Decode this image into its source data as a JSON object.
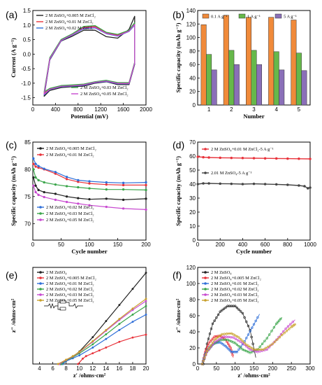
{
  "panels": {
    "a": {
      "label": "(a)"
    },
    "b": {
      "label": "(b)"
    },
    "c": {
      "label": "(c)"
    },
    "d": {
      "label": "(d)"
    },
    "e": {
      "label": "(e)"
    },
    "f": {
      "label": "(f)"
    }
  },
  "chart_data": [
    {
      "panel": "a",
      "type": "line",
      "xlabel": "Potential (mV)",
      "ylabel": "Current (A g⁻¹)",
      "xlim": [
        0,
        2000
      ],
      "ylim": [
        -1.75,
        1.5
      ],
      "xticks": [
        0,
        400,
        800,
        1200,
        1600,
        2000
      ],
      "yticks": [
        -1.5,
        -1.0,
        -0.5,
        0.0,
        0.5,
        1.0,
        1.5
      ],
      "legend_top": [
        "2 M ZnSO₄+0.005 M ZnCl₂",
        "2 M ZnSO₄+0.01 M ZnCl₂",
        "2 M ZnSO₄+0.02 M ZnCl₂"
      ],
      "legend_bottom": [
        "2 M ZnSO₄+0.03 M ZnCl₂",
        "2 M ZnSO₄+0.05 M ZnCl₂"
      ],
      "series": [
        {
          "name": "2 M ZnSO₄+0.005 M ZnCl₂",
          "color": "#222222",
          "x": [
            200,
            300,
            500,
            700,
            900,
            1100,
            1300,
            1500,
            1700,
            1800,
            1800,
            1700,
            1500,
            1300,
            1100,
            900,
            700,
            500,
            300,
            200
          ],
          "y": [
            -1.45,
            -0.2,
            0.45,
            0.62,
            0.82,
            0.82,
            0.6,
            0.55,
            0.85,
            1.3,
            -0.35,
            -1.05,
            -1.05,
            -0.95,
            -1.0,
            -1.1,
            -1.12,
            -1.15,
            -1.25,
            -1.45
          ]
        },
        {
          "name": "2 M ZnSO₄+0.01 M ZnCl₂",
          "color": "#e8323a",
          "x": [
            200,
            300,
            500,
            700,
            900,
            1100,
            1300,
            1500,
            1700,
            1800,
            1800,
            1700,
            1500,
            1300,
            1100,
            900,
            700,
            500,
            300,
            200
          ],
          "y": [
            -1.35,
            -0.15,
            0.48,
            0.68,
            0.92,
            0.95,
            0.72,
            0.65,
            0.8,
            1.05,
            -0.3,
            -1.0,
            -1.0,
            -0.92,
            -0.97,
            -1.05,
            -1.08,
            -1.1,
            -1.2,
            -1.35
          ]
        },
        {
          "name": "2 M ZnSO₄+0.02 M ZnCl₂",
          "color": "#2f6fd8",
          "x": [
            200,
            300,
            500,
            700,
            900,
            1100,
            1300,
            1500,
            1700,
            1800,
            1800,
            1700,
            1500,
            1300,
            1100,
            900,
            700,
            500,
            300,
            200
          ],
          "y": [
            -1.4,
            -0.18,
            0.46,
            0.66,
            0.88,
            0.9,
            0.7,
            0.62,
            0.78,
            1.0,
            -0.32,
            -1.02,
            -1.02,
            -0.94,
            -0.98,
            -1.07,
            -1.1,
            -1.12,
            -1.22,
            -1.4
          ]
        },
        {
          "name": "2 M ZnSO₄+0.03 M ZnCl₂",
          "color": "#3aa54a",
          "x": [
            200,
            300,
            500,
            700,
            900,
            1100,
            1300,
            1500,
            1700,
            1800,
            1800,
            1700,
            1500,
            1300,
            1100,
            900,
            700,
            500,
            300,
            200
          ],
          "y": [
            -1.3,
            -0.12,
            0.5,
            0.7,
            0.95,
            0.98,
            0.75,
            0.68,
            0.82,
            1.08,
            -0.28,
            -0.98,
            -0.98,
            -0.9,
            -0.95,
            -1.03,
            -1.06,
            -1.08,
            -1.18,
            -1.3
          ]
        },
        {
          "name": "2 M ZnSO₄+0.05 M ZnCl₂",
          "color": "#c84ad0",
          "x": [
            200,
            300,
            500,
            700,
            900,
            1100,
            1300,
            1500,
            1700,
            1800,
            1800,
            1700,
            1500,
            1300,
            1100,
            900,
            700,
            500,
            300,
            200
          ],
          "y": [
            -1.38,
            -0.16,
            0.47,
            0.67,
            0.9,
            0.92,
            0.71,
            0.63,
            0.79,
            1.02,
            -0.31,
            -1.01,
            -1.01,
            -0.93,
            -0.97,
            -1.06,
            -1.09,
            -1.11,
            -1.21,
            -1.38
          ]
        }
      ]
    },
    {
      "panel": "b",
      "type": "bar",
      "xlabel": "Number",
      "ylabel": "Specific capacity (mAh g⁻¹)",
      "ylim": [
        0,
        140
      ],
      "yticks": [
        0,
        20,
        40,
        60,
        80,
        100,
        120,
        140
      ],
      "categories": [
        "1",
        "2",
        "3",
        "4",
        "5"
      ],
      "series": [
        {
          "name": "0.1 A g⁻¹",
          "color": "#f08a3a",
          "values": [
            119,
            133,
            130,
            130,
            126
          ]
        },
        {
          "name": "1 A g⁻¹",
          "color": "#66b84a",
          "values": [
            75,
            81,
            81,
            79,
            77
          ]
        },
        {
          "name": "5 A g⁻¹",
          "color": "#8a6fb8",
          "values": [
            52,
            60,
            60,
            52,
            51
          ]
        }
      ]
    },
    {
      "panel": "c",
      "type": "line",
      "xlabel": "Cycle number",
      "ylabel": "Specific capacity (mAh g⁻¹)",
      "xlim": [
        0,
        200
      ],
      "ylim": [
        67,
        85
      ],
      "xticks": [
        0,
        50,
        100,
        150,
        200
      ],
      "yticks": [
        70,
        75,
        80,
        85
      ],
      "legend_top": [
        "2 M ZnSO₄+0.005 M ZnCl₂",
        "2 M ZnSO₄+0.01 M ZnCl₂"
      ],
      "legend_bottom": [
        "2 M ZnSO₄+0.02 M ZnCl₂",
        "2 M ZnSO₄+0.03 M ZnCl₂",
        "2 M ZnSO₄+0.05 M ZnCl₂"
      ],
      "series": [
        {
          "name": "2 M ZnSO₄+0.005 M ZnCl₂",
          "color": "#222222",
          "x": [
            1,
            5,
            10,
            20,
            40,
            60,
            80,
            100,
            130,
            160,
            200
          ],
          "y": [
            78.5,
            77,
            76.2,
            75.8,
            75.5,
            75,
            74.7,
            74.5,
            74.6,
            74.4,
            74.6
          ]
        },
        {
          "name": "2 M ZnSO₄+0.01 M ZnCl₂",
          "color": "#e8323a",
          "x": [
            1,
            5,
            10,
            20,
            40,
            60,
            80,
            100,
            130,
            160,
            200
          ],
          "y": [
            81,
            80.5,
            80.3,
            80,
            79.2,
            78.2,
            77.7,
            77.4,
            77.2,
            77.1,
            77.1
          ]
        },
        {
          "name": "2 M ZnSO₄+0.02 M ZnCl₂",
          "color": "#2f6fd8",
          "x": [
            1,
            5,
            10,
            20,
            40,
            60,
            80,
            100,
            130,
            160,
            200
          ],
          "y": [
            82,
            81,
            80.6,
            80.1,
            79.5,
            78.6,
            78,
            77.8,
            77.6,
            77.5,
            77.6
          ]
        },
        {
          "name": "2 M ZnSO₄+0.03 M ZnCl₂",
          "color": "#3aa54a",
          "x": [
            1,
            5,
            10,
            20,
            40,
            60,
            80,
            100,
            130,
            160,
            200
          ],
          "y": [
            80,
            78.5,
            78,
            77.6,
            77.2,
            76.9,
            76.7,
            76.5,
            76.3,
            76.3,
            76.2
          ]
        },
        {
          "name": "2 M ZnSO₄+0.05 M ZnCl₂",
          "color": "#c84ad0",
          "x": [
            1,
            5,
            10,
            20,
            40,
            60,
            80,
            100,
            130,
            160,
            200
          ],
          "y": [
            77,
            75.8,
            75.3,
            74.9,
            74.4,
            74,
            73.7,
            73.4,
            73.1,
            72.8,
            72.6
          ]
        }
      ]
    },
    {
      "panel": "d",
      "type": "line",
      "xlabel": "Cycle number",
      "ylabel": "Specific capacity (mAh g⁻¹)",
      "xlim": [
        0,
        1000
      ],
      "ylim": [
        0,
        70
      ],
      "xticks": [
        0,
        200,
        400,
        600,
        800,
        1000
      ],
      "yticks": [
        0,
        10,
        20,
        30,
        40,
        50,
        60,
        70
      ],
      "series": [
        {
          "name": "2 M ZnSO₄+0.01 M ZnCl₂-5 A g⁻¹",
          "color": "#e8323a",
          "x": [
            1,
            50,
            100,
            200,
            300,
            400,
            500,
            600,
            700,
            800,
            900,
            1000
          ],
          "y": [
            59.5,
            59.2,
            59,
            58.8,
            58.7,
            58.6,
            58.5,
            58.4,
            58.3,
            58.2,
            58.1,
            58
          ]
        },
        {
          "name": "2.01 M ZnSO₄-5 A g⁻¹",
          "color": "#444444",
          "x": [
            1,
            50,
            100,
            200,
            300,
            400,
            500,
            600,
            700,
            800,
            900,
            950,
            980,
            1000
          ],
          "y": [
            40,
            40.5,
            40.5,
            40.3,
            40.2,
            40,
            40.2,
            40,
            39.8,
            39.5,
            39,
            38.5,
            37,
            37.5
          ]
        }
      ]
    },
    {
      "panel": "e",
      "type": "line",
      "xlabel": "z′ /ohms·cm²",
      "ylabel": "z″ /ohms·cm²",
      "xlim": [
        3,
        20
      ],
      "ylim": [
        0,
        27
      ],
      "xticks": [
        4,
        6,
        8,
        10,
        12,
        14,
        16,
        18,
        20
      ],
      "series": [
        {
          "name": "2 M ZnSO₄",
          "color": "#222222",
          "x": [
            7.2,
            8,
            9,
            10,
            12,
            14,
            16,
            18,
            20
          ],
          "y": [
            0,
            1,
            2,
            3.5,
            7.5,
            12,
            16.5,
            21,
            25.5
          ]
        },
        {
          "name": "2 M ZnSO₄+0.005 M ZnCl₂",
          "color": "#e8323a",
          "x": [
            9.8,
            10.5,
            11,
            12,
            13,
            14,
            16,
            18,
            20
          ],
          "y": [
            0,
            1.5,
            2.2,
            3,
            3.8,
            4.6,
            6.2,
            7.4,
            8.2
          ]
        },
        {
          "name": "2 M ZnSO₄+0.01 M ZnCl₂",
          "color": "#2f6fd8",
          "x": [
            7.5,
            8,
            9,
            10,
            12,
            14,
            16,
            18,
            20
          ],
          "y": [
            0,
            0.8,
            1.6,
            2.4,
            4.6,
            7,
            9.5,
            11.8,
            13.8
          ]
        },
        {
          "name": "2 M ZnSO₄+0.02 M ZnCl₂",
          "color": "#3aa54a",
          "x": [
            7.3,
            8,
            9,
            10,
            12,
            14,
            16,
            18,
            20
          ],
          "y": [
            0,
            1,
            1.9,
            3,
            5.5,
            8.3,
            11.2,
            13.8,
            16.2
          ]
        },
        {
          "name": "2 M ZnSO₄+0.03 M ZnCl₂",
          "color": "#c84ad0",
          "x": [
            7.0,
            8,
            9,
            10,
            12,
            14,
            16,
            18,
            20
          ],
          "y": [
            0,
            1.1,
            2.1,
            3.3,
            6.2,
            9.3,
            12.3,
            15.1,
            17.6
          ]
        },
        {
          "name": "2 M ZnSO₄+0.05 M ZnCl₂",
          "color": "#c8a02a",
          "x": [
            6.8,
            8,
            9,
            10,
            12,
            14,
            16,
            18,
            20
          ],
          "y": [
            0,
            1.2,
            2.2,
            3.4,
            6.4,
            9.5,
            12.6,
            15.5,
            18.2
          ]
        }
      ]
    },
    {
      "panel": "f",
      "type": "scatter",
      "xlabel": "z′ /ohms·cm²",
      "ylabel": "z″ /ohms·cm²",
      "xlim": [
        0,
        300
      ],
      "ylim": [
        0,
        120
      ],
      "xticks": [
        0,
        50,
        100,
        150,
        200,
        250,
        300
      ],
      "yticks": [
        0,
        20,
        40,
        60,
        80,
        100,
        120
      ],
      "series": [
        {
          "name": "2 M ZnSO₄",
          "color": "#222222",
          "x": [
            15,
            25,
            40,
            60,
            80,
            100,
            120,
            140,
            155
          ],
          "y": [
            0,
            25,
            50,
            65,
            72,
            72,
            63,
            42,
            8
          ]
        },
        {
          "name": "2 M ZnSO₄+0.005 M ZnCl₂",
          "color": "#e8323a",
          "x": [
            12,
            20,
            30,
            45,
            60,
            75,
            88,
            95
          ],
          "y": [
            0,
            15,
            26,
            34,
            35,
            30,
            20,
            8
          ]
        },
        {
          "name": "2 M ZnSO₄+0.01 M ZnCl₂",
          "color": "#2f6fd8",
          "x": [
            12,
            20,
            30,
            45,
            60,
            75,
            90,
            105,
            125,
            145,
            165
          ],
          "y": [
            0,
            12,
            20,
            26,
            27,
            22,
            15,
            15,
            28,
            45,
            62
          ]
        },
        {
          "name": "2 M ZnSO₄+0.02 M ZnCl₂",
          "color": "#3aa54a",
          "x": [
            12,
            25,
            40,
            60,
            80,
            100,
            120,
            140,
            160,
            185,
            210,
            225
          ],
          "y": [
            0,
            15,
            24,
            30,
            30,
            26,
            18,
            14,
            18,
            32,
            50,
            58
          ]
        },
        {
          "name": "2 M ZnSO₄+0.03 M ZnCl₂",
          "color": "#c84ad0",
          "x": [
            12,
            25,
            45,
            70,
            95,
            120,
            140,
            160,
            185,
            210,
            235,
            260
          ],
          "y": [
            0,
            15,
            27,
            34,
            33,
            26,
            18,
            15,
            18,
            30,
            44,
            55
          ]
        },
        {
          "name": "2 M ZnSO₄+0.05 M ZnCl₂",
          "color": "#c8a02a",
          "x": [
            12,
            25,
            45,
            65,
            90,
            110,
            130,
            150,
            175,
            200,
            225,
            250,
            262
          ],
          "y": [
            0,
            16,
            30,
            37,
            38,
            33,
            24,
            18,
            18,
            25,
            36,
            46,
            50
          ]
        }
      ]
    }
  ]
}
